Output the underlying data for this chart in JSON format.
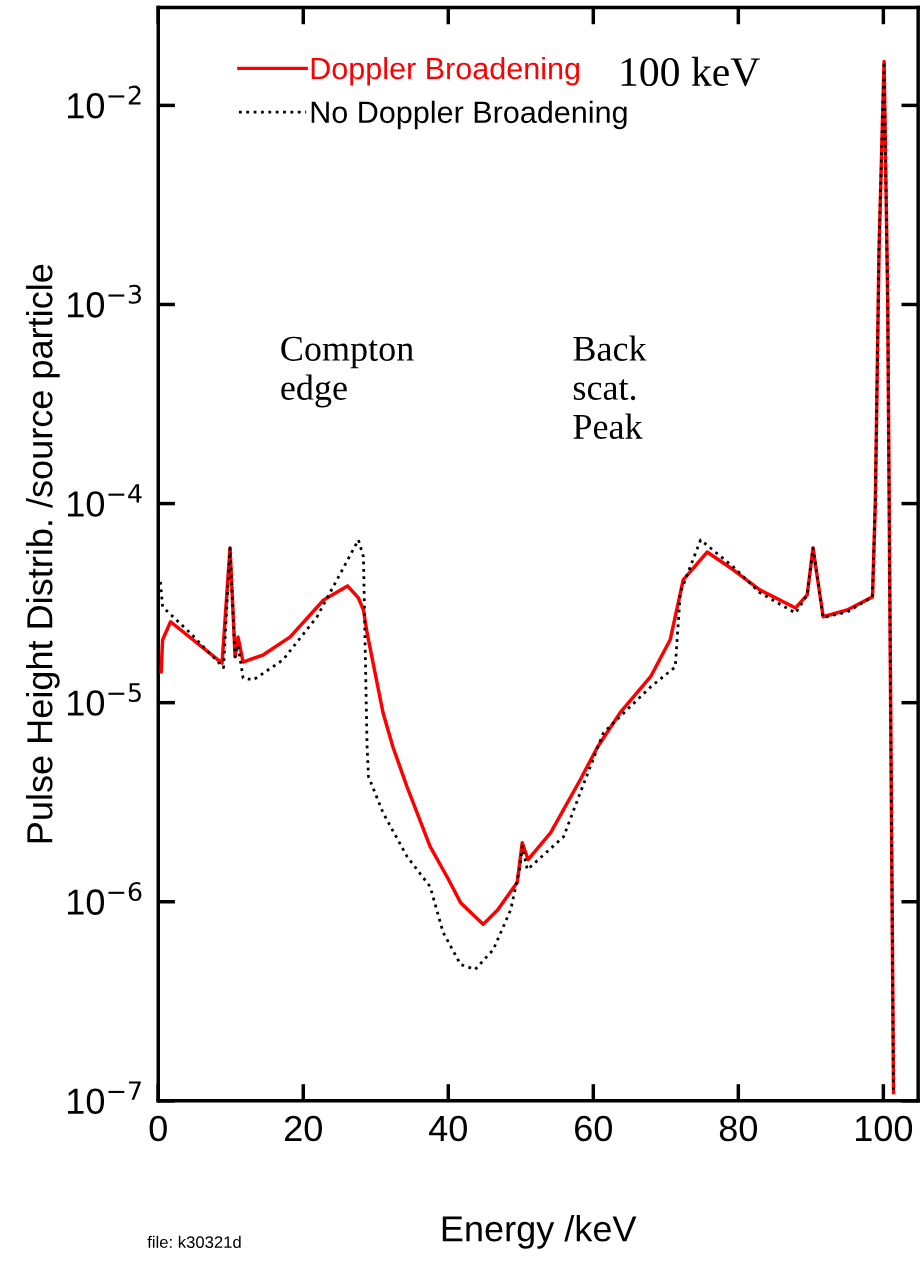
{
  "chart_data": {
    "type": "line",
    "xlabel": "Energy /keV",
    "ylabel": "Pulse Height Distrib. /source particle",
    "xlim": [
      0,
      104.8
    ],
    "xticks": [
      0,
      20,
      40,
      60,
      80,
      100
    ],
    "ylim": [
      1e-07,
      0.031
    ],
    "yticks": [
      {
        "value": 1e-07,
        "label": "10$^{−7}$"
      },
      {
        "value": 1e-06,
        "label": "10$^{−6}$"
      },
      {
        "value": 1e-05,
        "label": "10$^{−5}$"
      },
      {
        "value": 0.0001,
        "label": "10$^{−4}$"
      },
      {
        "value": 0.001,
        "label": "10$^{−3}$"
      },
      {
        "value": 0.01,
        "label": "10$^{−2}$"
      }
    ],
    "log": "y",
    "grid": false,
    "legend": "top left",
    "marker": "none",
    "annotations": [
      "100 keV",
      "Compton\nedge",
      "Back\nscat.\nPeak",
      "file: k30321d"
    ],
    "series": [
      {
        "name": "Doppler Broadening",
        "color": "#ff0000",
        "line_style": "solid",
        "x": [
          0.4,
          0.6,
          1.7,
          8.8,
          9.9,
          10.6,
          11.0,
          11.7,
          14.5,
          18.2,
          22.8,
          26.1,
          27.6,
          28.3,
          28.8,
          31.0,
          32.4,
          34.3,
          37.5,
          39.9,
          41.7,
          44.8,
          46.8,
          49.5,
          50.2,
          51.0,
          54.1,
          58.2,
          60.6,
          63.7,
          67.9,
          70.6,
          72.4,
          75.7,
          79.3,
          83.0,
          87.9,
          89.5,
          90.3,
          91.7,
          95.0,
          98.5,
          98.9,
          99.4,
          100.1,
          100.6,
          101.0,
          101.4
        ],
        "values": [
          1.43e-05,
          2.07e-05,
          2.55e-05,
          1.58e-05,
          5.98e-05,
          1.7e-05,
          2.14e-05,
          1.6e-05,
          1.74e-05,
          2.14e-05,
          3.28e-05,
          3.86e-05,
          3.36e-05,
          2.92e-05,
          2.24e-05,
          8.9e-06,
          5.94e-06,
          3.79e-06,
          1.89e-06,
          1.32e-06,
          9.9e-07,
          7.7e-07,
          9.1e-07,
          1.25e-06,
          1.98e-06,
          1.63e-06,
          2.22e-06,
          4.1e-06,
          6.01e-06,
          8.9e-06,
          1.35e-05,
          2.07e-05,
          4.14e-05,
          5.71e-05,
          4.65e-05,
          3.68e-05,
          2.99e-05,
          3.48e-05,
          5.98e-05,
          2.7e-05,
          2.92e-05,
          3.4e-05,
          0.000104,
          0.00187,
          0.0166,
          0.00105,
          1.03e-05,
          1.1e-07
        ]
      },
      {
        "name": "No Doppler Broadening",
        "color": "#000000",
        "line_style": "dotted",
        "x": [
          0.3,
          0.6,
          4.4,
          9.0,
          9.9,
          10.6,
          11.0,
          11.7,
          13.1,
          17.2,
          21.9,
          27.6,
          28.3,
          28.8,
          29.0,
          31.0,
          34.3,
          37.5,
          39.3,
          41.7,
          43.7,
          46.2,
          48.6,
          49.9,
          50.2,
          50.9,
          55.9,
          58.2,
          61.4,
          67.9,
          71.3,
          72.0,
          74.8,
          79.3,
          83.0,
          87.9,
          89.5,
          90.3,
          91.7,
          95.0,
          98.5,
          98.9,
          99.4,
          100.1,
          100.6,
          101.0,
          101.4
        ],
        "values": [
          4.04e-05,
          3.03e-05,
          2.24e-05,
          1.5e-05,
          5.98e-05,
          1.7e-05,
          1.95e-05,
          1.33e-05,
          1.3e-05,
          1.64e-05,
          2.7e-05,
          6.57e-05,
          5.4e-05,
          6.01e-06,
          4.25e-06,
          2.8e-06,
          1.69e-06,
          1.19e-06,
          7e-07,
          4.84e-07,
          4.57e-07,
          5.75e-07,
          9.1e-07,
          1.5e-06,
          1.9e-06,
          1.45e-06,
          2.12e-06,
          3.53e-06,
          7.06e-06,
          1.2e-05,
          1.51e-05,
          3.56e-05,
          6.57e-05,
          4.81e-05,
          3.56e-05,
          2.82e-05,
          3.48e-05,
          5.98e-05,
          2.68e-05,
          2.85e-05,
          3.4e-05,
          0.000104,
          0.00187,
          0.0166,
          0.00105,
          1.03e-05,
          1.1e-07
        ]
      }
    ]
  }
}
